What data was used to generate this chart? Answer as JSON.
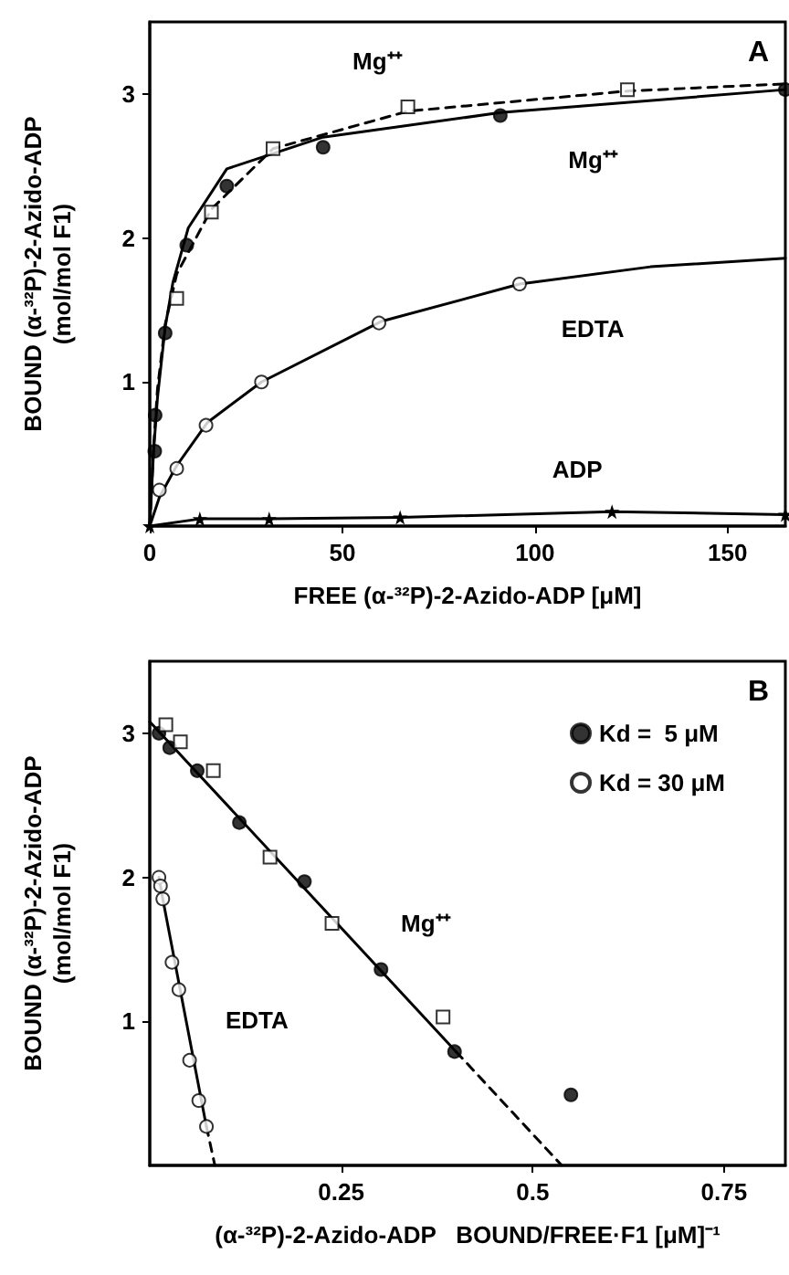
{
  "chart_data": [
    {
      "type": "scatter",
      "title": "A",
      "xlabel": "FREE (α-³²P)-2-Azido-ADP [μM]",
      "ylabel": "BOUND (α-³²P)-2-Azido-ADP\n(mol/mol F1)",
      "xlim": [
        0,
        165
      ],
      "xticks": [
        0,
        50,
        100,
        150
      ],
      "ylim": [
        0,
        3.5
      ],
      "yticks": [
        1,
        2,
        3
      ],
      "grid": false,
      "legend": false,
      "annotations": [
        "Mg⁺⁺",
        "Mg⁺⁺",
        "EDTA",
        "ADP"
      ],
      "series": [
        {
          "type": "scatter",
          "marker": "circle",
          "color": "#000000",
          "x": [
            1.3,
            1.4,
            4,
            9.6,
            20,
            45,
            91,
            165
          ],
          "values": [
            0.52,
            0.77,
            1.34,
            1.95,
            2.36,
            2.63,
            2.85,
            3.03
          ]
        },
        {
          "type": "scatter",
          "marker": "square",
          "color": "#ffffff",
          "x": [
            7,
            16,
            32,
            67,
            124
          ],
          "values": [
            1.58,
            2.18,
            2.62,
            2.91,
            3.03
          ]
        },
        {
          "type": "scatter",
          "marker": "circle",
          "color": "#ffffff",
          "x": [
            2.5,
            7,
            14.6,
            29,
            59.5,
            96
          ],
          "values": [
            0.25,
            0.4,
            0.7,
            1.0,
            1.41,
            1.68
          ]
        },
        {
          "type": "line",
          "marker": "star",
          "line_style": "solid",
          "color": "#000000",
          "x": [
            0,
            13,
            31,
            65,
            120,
            165
          ],
          "values": [
            0,
            0.05,
            0.05,
            0.06,
            0.1,
            0.08
          ]
        },
        {
          "type": "line",
          "marker": "none",
          "line_style": "solid",
          "color": "#000000",
          "x": [
            0,
            1,
            2,
            4,
            6,
            10,
            20,
            45,
            91,
            165
          ],
          "values": [
            0,
            0.52,
            0.89,
            1.38,
            1.69,
            2.07,
            2.48,
            2.7,
            2.87,
            3.03
          ]
        },
        {
          "type": "line",
          "marker": "none",
          "line_style": "dashed",
          "color": "#000000",
          "x": [
            0,
            1,
            2,
            4,
            7,
            16,
            32,
            67,
            124,
            165
          ],
          "values": [
            0,
            0.55,
            0.95,
            1.4,
            1.75,
            2.2,
            2.62,
            2.88,
            3.02,
            3.07
          ]
        },
        {
          "type": "line",
          "marker": "none",
          "line_style": "solid",
          "color": "#000000",
          "x": [
            0,
            2.5,
            7,
            15,
            29,
            60,
            96,
            130,
            165
          ],
          "values": [
            0,
            0.2,
            0.42,
            0.72,
            1.0,
            1.42,
            1.68,
            1.8,
            1.86
          ]
        }
      ]
    },
    {
      "type": "scatter",
      "title": "B",
      "xlabel": "(α-³²P)-2-Azido-ADP   BOUND/FREE·F1 [μM]⁻¹",
      "ylabel": "BOUND (α-³²P)-2-Azido-ADP\n(mol/mol F1)",
      "xlim": [
        0,
        0.83
      ],
      "xticks": [
        0.25,
        0.5,
        0.75
      ],
      "ylim": [
        0,
        3.5
      ],
      "yticks": [
        1,
        2,
        3
      ],
      "grid": false,
      "legend": "top right",
      "annotations": [
        "Mg⁺⁺",
        "EDTA"
      ],
      "series": [
        {
          "type": "scatter",
          "name": "Kd =  5 μM",
          "marker": "circle",
          "color": "#000000",
          "x": [
            0.012,
            0.026,
            0.062,
            0.117,
            0.202,
            0.302,
            0.398,
            0.55
          ],
          "values": [
            3.0,
            2.9,
            2.74,
            2.38,
            1.97,
            1.36,
            0.79,
            0.49
          ]
        },
        {
          "type": "scatter",
          "marker": "square",
          "color": "#ffffff",
          "x": [
            0.021,
            0.04,
            0.083,
            0.157,
            0.238,
            0.383
          ],
          "values": [
            3.06,
            2.94,
            2.74,
            2.14,
            1.68,
            1.03
          ]
        },
        {
          "type": "scatter",
          "name": "Kd = 30 μM",
          "marker": "circle",
          "color": "#ffffff",
          "x": [
            0.012,
            0.014,
            0.017,
            0.029,
            0.038,
            0.052,
            0.064,
            0.074
          ],
          "values": [
            2.0,
            1.94,
            1.85,
            1.41,
            1.22,
            0.73,
            0.45,
            0.27
          ]
        },
        {
          "type": "line",
          "marker": "none",
          "line_style": "solid",
          "color": "#000000",
          "x": [
            0,
            0.4
          ],
          "values": [
            3.08,
            0.79
          ]
        },
        {
          "type": "line",
          "marker": "none",
          "line_style": "dashed",
          "color": "#000000",
          "x": [
            0.4,
            0.538
          ],
          "values": [
            0.79,
            0
          ]
        },
        {
          "type": "line",
          "marker": "none",
          "line_style": "solid",
          "color": "#000000",
          "x": [
            0.012,
            0.017,
            0.074
          ],
          "values": [
            2.0,
            1.85,
            0.27
          ]
        },
        {
          "type": "line",
          "marker": "none",
          "line_style": "dashed",
          "color": "#000000",
          "x": [
            0.074,
            0.085
          ],
          "values": [
            0.27,
            0
          ]
        }
      ]
    }
  ]
}
